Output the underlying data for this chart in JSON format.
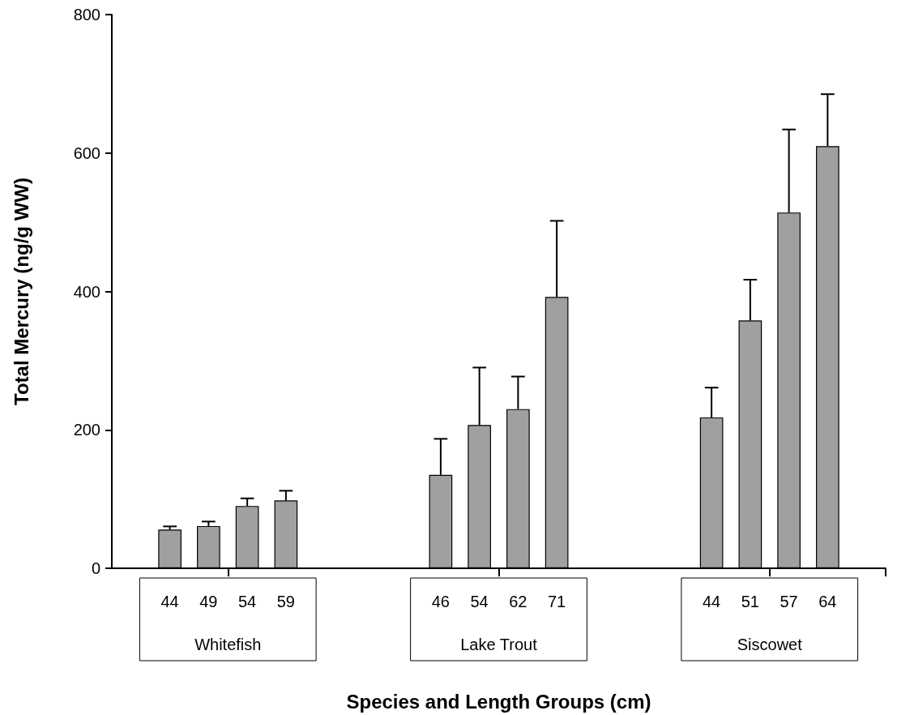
{
  "chart_data": {
    "type": "bar",
    "xlabel": "Species and Length Groups (cm)",
    "ylabel": "Total Mercury (ng/g WW)",
    "categories": [
      null,
      "44",
      "49",
      "54",
      "59",
      null,
      null,
      null,
      "46",
      "54",
      "62",
      "71",
      null,
      null,
      null,
      "44",
      "51",
      "57",
      "64",
      null
    ],
    "series": [
      {
        "color": "#a0a0a0",
        "values": [
          null,
          56,
          61,
          90,
          98,
          null,
          null,
          null,
          135,
          207,
          230,
          392,
          null,
          null,
          null,
          218,
          358,
          514,
          610,
          null
        ],
        "errors": [
          null,
          [
            56,
            60.5
          ],
          [
            61,
            67.5
          ],
          [
            90,
            101
          ],
          [
            98,
            112
          ],
          null,
          null,
          null,
          [
            135,
            187
          ],
          [
            207,
            290
          ],
          [
            230,
            277
          ],
          [
            392,
            502
          ],
          null,
          null,
          null,
          [
            218,
            261
          ],
          [
            358,
            417
          ],
          [
            514,
            634
          ],
          [
            610,
            685
          ],
          null
        ]
      }
    ],
    "annotations": [
      "Whitefish",
      "Lake Trout",
      "Siscowet"
    ],
    "ylim": [
      0,
      800
    ],
    "yticks": [
      0,
      200,
      400,
      600,
      800
    ],
    "grid": false
  }
}
